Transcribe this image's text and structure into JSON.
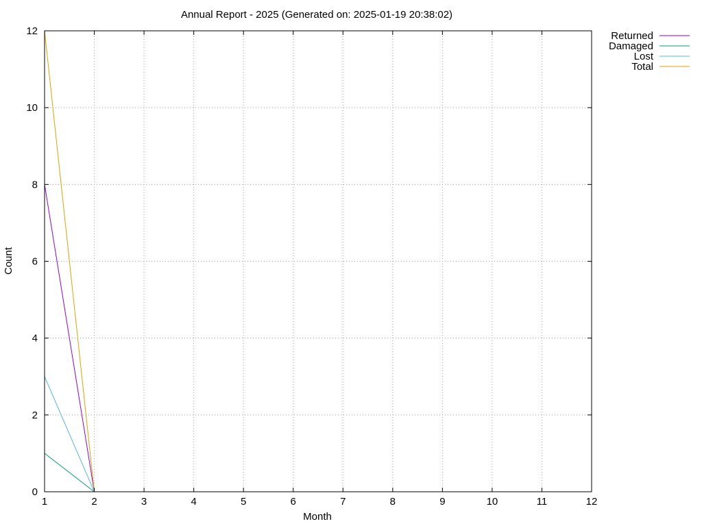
{
  "chart_data": {
    "type": "line",
    "title": "Annual Report - 2025 (Generated on: 2025-01-19 20:38:02)",
    "xlabel": "Month",
    "ylabel": "Count",
    "xlim": [
      1,
      12
    ],
    "ylim": [
      0,
      12
    ],
    "x_ticks": [
      1,
      2,
      3,
      4,
      5,
      6,
      7,
      8,
      9,
      10,
      11,
      12
    ],
    "y_ticks": [
      0,
      2,
      4,
      6,
      8,
      10,
      12
    ],
    "grid": true,
    "legend_position": "outside-top-right",
    "series": [
      {
        "name": "Returned",
        "color": "#9400d3",
        "x": [
          1,
          2
        ],
        "y": [
          8,
          0
        ]
      },
      {
        "name": "Damaged",
        "color": "#009e73",
        "x": [
          1,
          2
        ],
        "y": [
          1,
          0
        ]
      },
      {
        "name": "Lost",
        "color": "#56b4e9",
        "x": [
          1,
          2
        ],
        "y": [
          3,
          0
        ]
      },
      {
        "name": "Total",
        "color": "#e69f00",
        "x": [
          1,
          2
        ],
        "y": [
          12,
          0
        ]
      }
    ]
  }
}
